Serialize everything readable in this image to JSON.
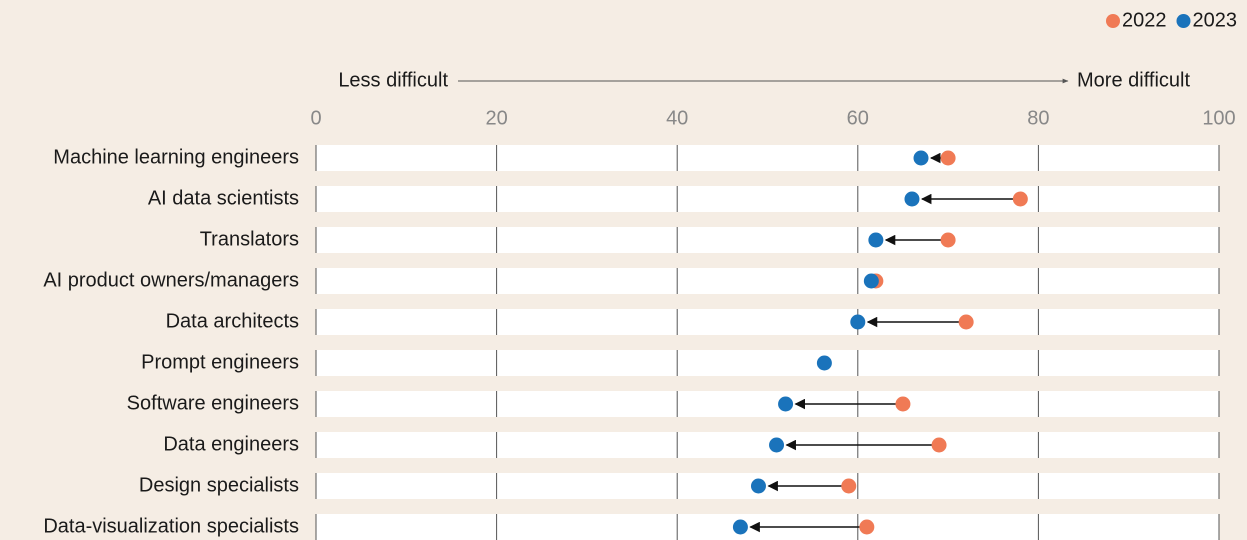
{
  "chart_data": {
    "type": "dot",
    "annotations": {
      "left": "Less difficult",
      "right": "More difficult"
    },
    "categories": [
      "Machine learning engineers",
      "AI data scientists",
      "Translators",
      "AI product owners/managers",
      "Data architects",
      "Prompt engineers",
      "Software engineers",
      "Data engineers",
      "Design specialists",
      "Data-visualization specialists"
    ],
    "series": [
      {
        "name": "2022",
        "color": "#f07a55",
        "values": [
          70,
          78,
          70,
          62,
          72,
          null,
          65,
          69,
          59,
          61
        ]
      },
      {
        "name": "2023",
        "color": "#1a73bb",
        "values": [
          67,
          66,
          62,
          61.5,
          60,
          56.3,
          52,
          51,
          49,
          47
        ]
      }
    ],
    "xlim": [
      0,
      100
    ],
    "xticks": [
      0,
      20,
      40,
      60,
      80,
      100
    ],
    "grid": true,
    "legend": "top-right"
  }
}
